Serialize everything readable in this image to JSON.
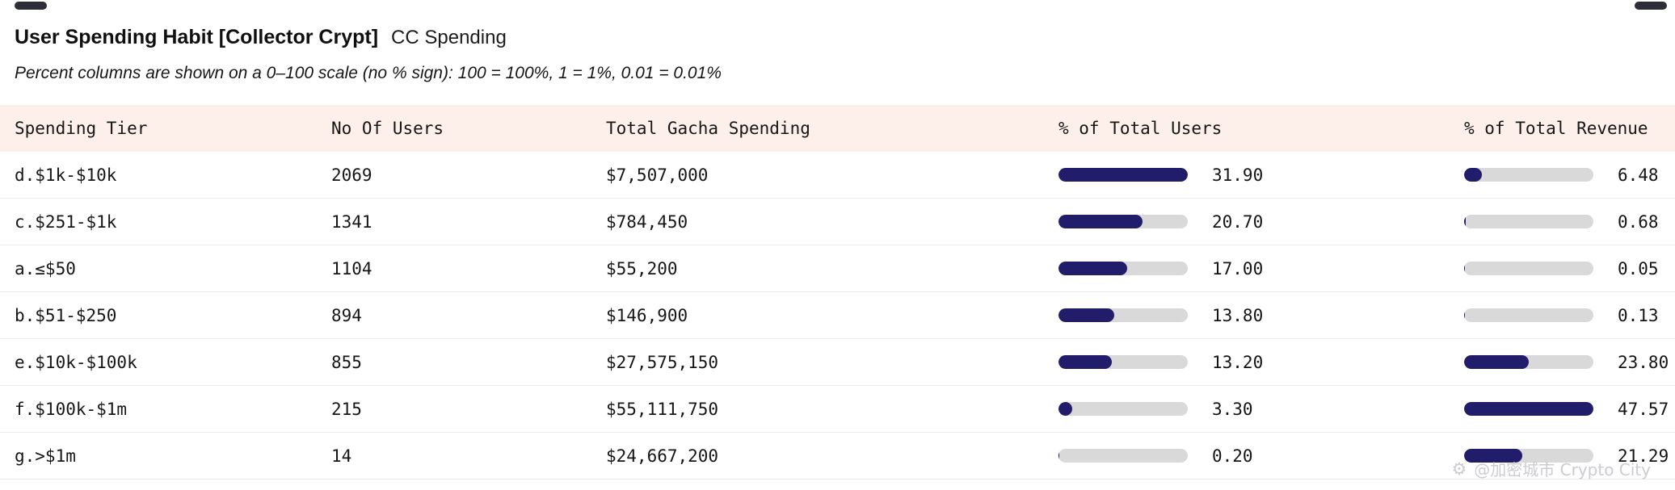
{
  "header": {
    "title": "User Spending Habit [Collector Crypt]",
    "tag": "CC Spending",
    "note": "Percent columns are shown on a 0–100 scale (no % sign): 100 = 100%, 1 = 1%, 0.01 = 0.01%"
  },
  "watermark": {
    "icon": "gear-logo-icon",
    "text": "@加密城市 Crypto City"
  },
  "chart_data": {
    "type": "table",
    "title": "User Spending Habit [Collector Crypt] — CC Spending",
    "columns": [
      "Spending Tier",
      "No Of Users",
      "Total Gacha Spending",
      "% of Total Users",
      "% of Total Revenue"
    ],
    "bar_color": "#211d6b",
    "track_color": "#d9d9d9",
    "pct_users_axis_max": 31.9,
    "pct_revenue_axis_max": 47.57,
    "rows": [
      {
        "tier": "d.$1k-$10k",
        "users": "2069",
        "spending": "$7,507,000",
        "pct_users": 31.9,
        "pct_users_label": "31.90",
        "pct_revenue": 6.48,
        "pct_revenue_label": "6.48"
      },
      {
        "tier": "c.$251-$1k",
        "users": "1341",
        "spending": "$784,450",
        "pct_users": 20.7,
        "pct_users_label": "20.70",
        "pct_revenue": 0.68,
        "pct_revenue_label": "0.68"
      },
      {
        "tier": "a.≤$50",
        "users": "1104",
        "spending": "$55,200",
        "pct_users": 17.0,
        "pct_users_label": "17.00",
        "pct_revenue": 0.05,
        "pct_revenue_label": "0.05"
      },
      {
        "tier": "b.$51-$250",
        "users": "894",
        "spending": "$146,900",
        "pct_users": 13.8,
        "pct_users_label": "13.80",
        "pct_revenue": 0.13,
        "pct_revenue_label": "0.13"
      },
      {
        "tier": "e.$10k-$100k",
        "users": "855",
        "spending": "$27,575,150",
        "pct_users": 13.2,
        "pct_users_label": "13.20",
        "pct_revenue": 23.8,
        "pct_revenue_label": "23.80"
      },
      {
        "tier": "f.$100k-$1m",
        "users": "215",
        "spending": "$55,111,750",
        "pct_users": 3.3,
        "pct_users_label": "3.30",
        "pct_revenue": 47.57,
        "pct_revenue_label": "47.57"
      },
      {
        "tier": "g.>$1m",
        "users": "14",
        "spending": "$24,667,200",
        "pct_users": 0.2,
        "pct_users_label": "0.20",
        "pct_revenue": 21.29,
        "pct_revenue_label": "21.29"
      }
    ]
  }
}
